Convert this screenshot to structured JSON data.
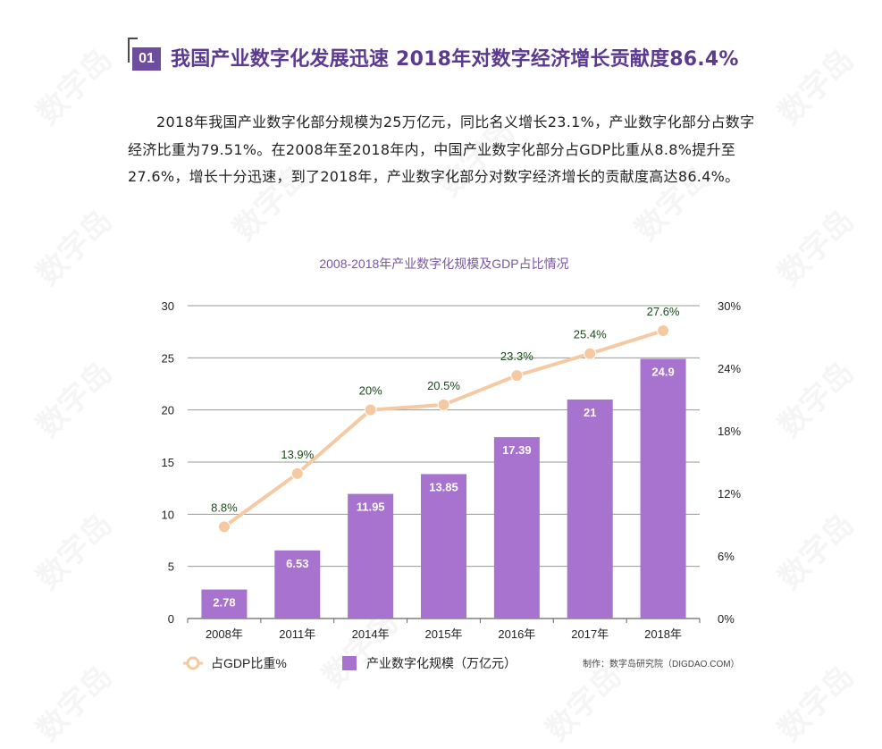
{
  "header": {
    "badge": "01",
    "title": "我国产业数字化发展迅速 2018年对数字经济增长贡献度86.4%"
  },
  "paragraph": "2018年我国产业数字化部分规模为25万亿元，同比名义增长23.1%，产业数字化部分占数字经济比重为79.51%。在2008年至2018年内，中国产业数字化部分占GDP比重从8.8%提升至27.6%，增长十分迅速，到了2018年，产业数字化部分对数字经济增长的贡献度高达86.4%。",
  "watermark_text": "数字岛",
  "colors": {
    "bar": "#a872cf",
    "line": "#f5c9a2",
    "title": "#5b3a8f",
    "chart_title": "#7b55a8",
    "badge": "#6e4c9e"
  },
  "chart_data": {
    "type": "bar",
    "title": "2008-2018年产业数字化规模及GDP占比情况",
    "categories": [
      "2008年",
      "2011年",
      "2014年",
      "2015年",
      "2016年",
      "2017年",
      "2018年"
    ],
    "series": [
      {
        "name": "产业数字化规模（万亿元）",
        "type": "bar",
        "axis": "left",
        "values": [
          2.78,
          6.53,
          11.95,
          13.85,
          17.39,
          21,
          24.9
        ],
        "labels": [
          "2.78",
          "6.53",
          "11.95",
          "13.85",
          "17.39",
          "21",
          "24.9"
        ]
      },
      {
        "name": "占GDP比重%",
        "type": "line",
        "axis": "right",
        "values": [
          8.8,
          13.9,
          20,
          20.5,
          23.3,
          25.4,
          27.6
        ],
        "labels": [
          "8.8%",
          "13.9%",
          "20%",
          "20.5%",
          "23.3%",
          "25.4%",
          "27.6%"
        ]
      }
    ],
    "ylim": [
      0,
      30
    ],
    "yticks": [
      "0",
      "5",
      "10",
      "15",
      "20",
      "25",
      "30"
    ],
    "y2lim": [
      0,
      30
    ],
    "y2ticks": [
      "0%",
      "6%",
      "12%",
      "18%",
      "24%",
      "30%"
    ],
    "legend": [
      {
        "label": "占GDP比重%",
        "kind": "line"
      },
      {
        "label": "产业数字化规模（万亿元）",
        "kind": "bar"
      }
    ],
    "legend_position": "bottom-left",
    "source": "制作：数字岛研究院（DIGDAO.COM）",
    "grid": true
  }
}
